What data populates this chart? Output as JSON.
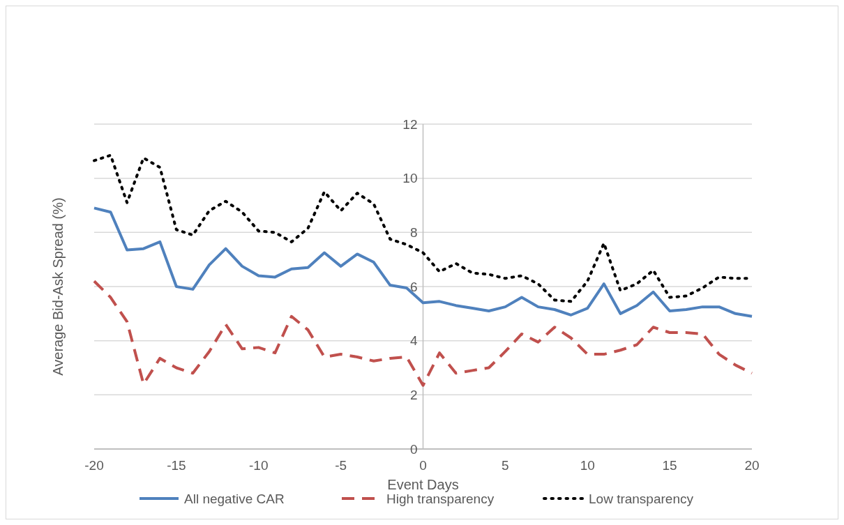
{
  "chart_data": {
    "type": "line",
    "xlabel": "Event Days",
    "ylabel": "Average Bid-Ask Spread (%)",
    "x": [
      -20,
      -19,
      -18,
      -17,
      -16,
      -15,
      -14,
      -13,
      -12,
      -11,
      -10,
      -9,
      -8,
      -7,
      -6,
      -5,
      -4,
      -3,
      -2,
      -1,
      0,
      1,
      2,
      3,
      4,
      5,
      6,
      7,
      8,
      9,
      10,
      11,
      12,
      13,
      14,
      15,
      16,
      17,
      18,
      19,
      20
    ],
    "series": [
      {
        "name": "All negative CAR",
        "color": "#4f81bd",
        "line_style": "solid",
        "values": [
          8.9,
          8.75,
          7.35,
          7.4,
          7.65,
          6.0,
          5.9,
          6.8,
          7.4,
          6.75,
          6.4,
          6.35,
          6.65,
          6.7,
          7.25,
          6.75,
          7.2,
          6.9,
          6.05,
          5.95,
          5.4,
          5.45,
          5.3,
          5.2,
          5.1,
          5.25,
          5.6,
          5.25,
          5.15,
          4.95,
          5.2,
          6.1,
          5.0,
          5.3,
          5.8,
          5.1,
          5.15,
          5.25,
          5.25,
          5.0,
          4.9
        ]
      },
      {
        "name": "High transparency",
        "color": "#c0504d",
        "line_style": "dashed",
        "values": [
          6.2,
          5.6,
          4.7,
          2.4,
          3.35,
          3.0,
          2.8,
          3.6,
          4.6,
          3.7,
          3.75,
          3.55,
          4.9,
          4.4,
          3.4,
          3.5,
          3.4,
          3.25,
          3.35,
          3.4,
          2.35,
          3.55,
          2.8,
          2.9,
          3.0,
          3.6,
          4.25,
          3.95,
          4.5,
          4.1,
          3.5,
          3.5,
          3.65,
          3.85,
          4.5,
          4.3,
          4.3,
          4.25,
          3.5,
          3.1,
          2.8
        ]
      },
      {
        "name": "Low transparency",
        "color": "#000000",
        "line_style": "dotted",
        "values": [
          10.65,
          10.85,
          9.1,
          10.75,
          10.4,
          8.1,
          7.9,
          8.8,
          9.15,
          8.75,
          8.05,
          8.0,
          7.65,
          8.15,
          9.5,
          8.8,
          9.45,
          9.05,
          7.75,
          7.55,
          7.25,
          6.55,
          6.85,
          6.5,
          6.45,
          6.3,
          6.4,
          6.1,
          5.5,
          5.45,
          6.2,
          7.6,
          5.85,
          6.1,
          6.6,
          5.6,
          5.65,
          5.95,
          6.35,
          6.3,
          6.3
        ]
      }
    ],
    "xlim": [
      -20,
      20
    ],
    "xticks": [
      -20,
      -15,
      -10,
      -5,
      0,
      5,
      10,
      15,
      20
    ],
    "ylim": [
      0,
      12
    ],
    "yticks": [
      0,
      2,
      4,
      6,
      8,
      10,
      12
    ],
    "grid": "y",
    "legend": "bottom"
  }
}
